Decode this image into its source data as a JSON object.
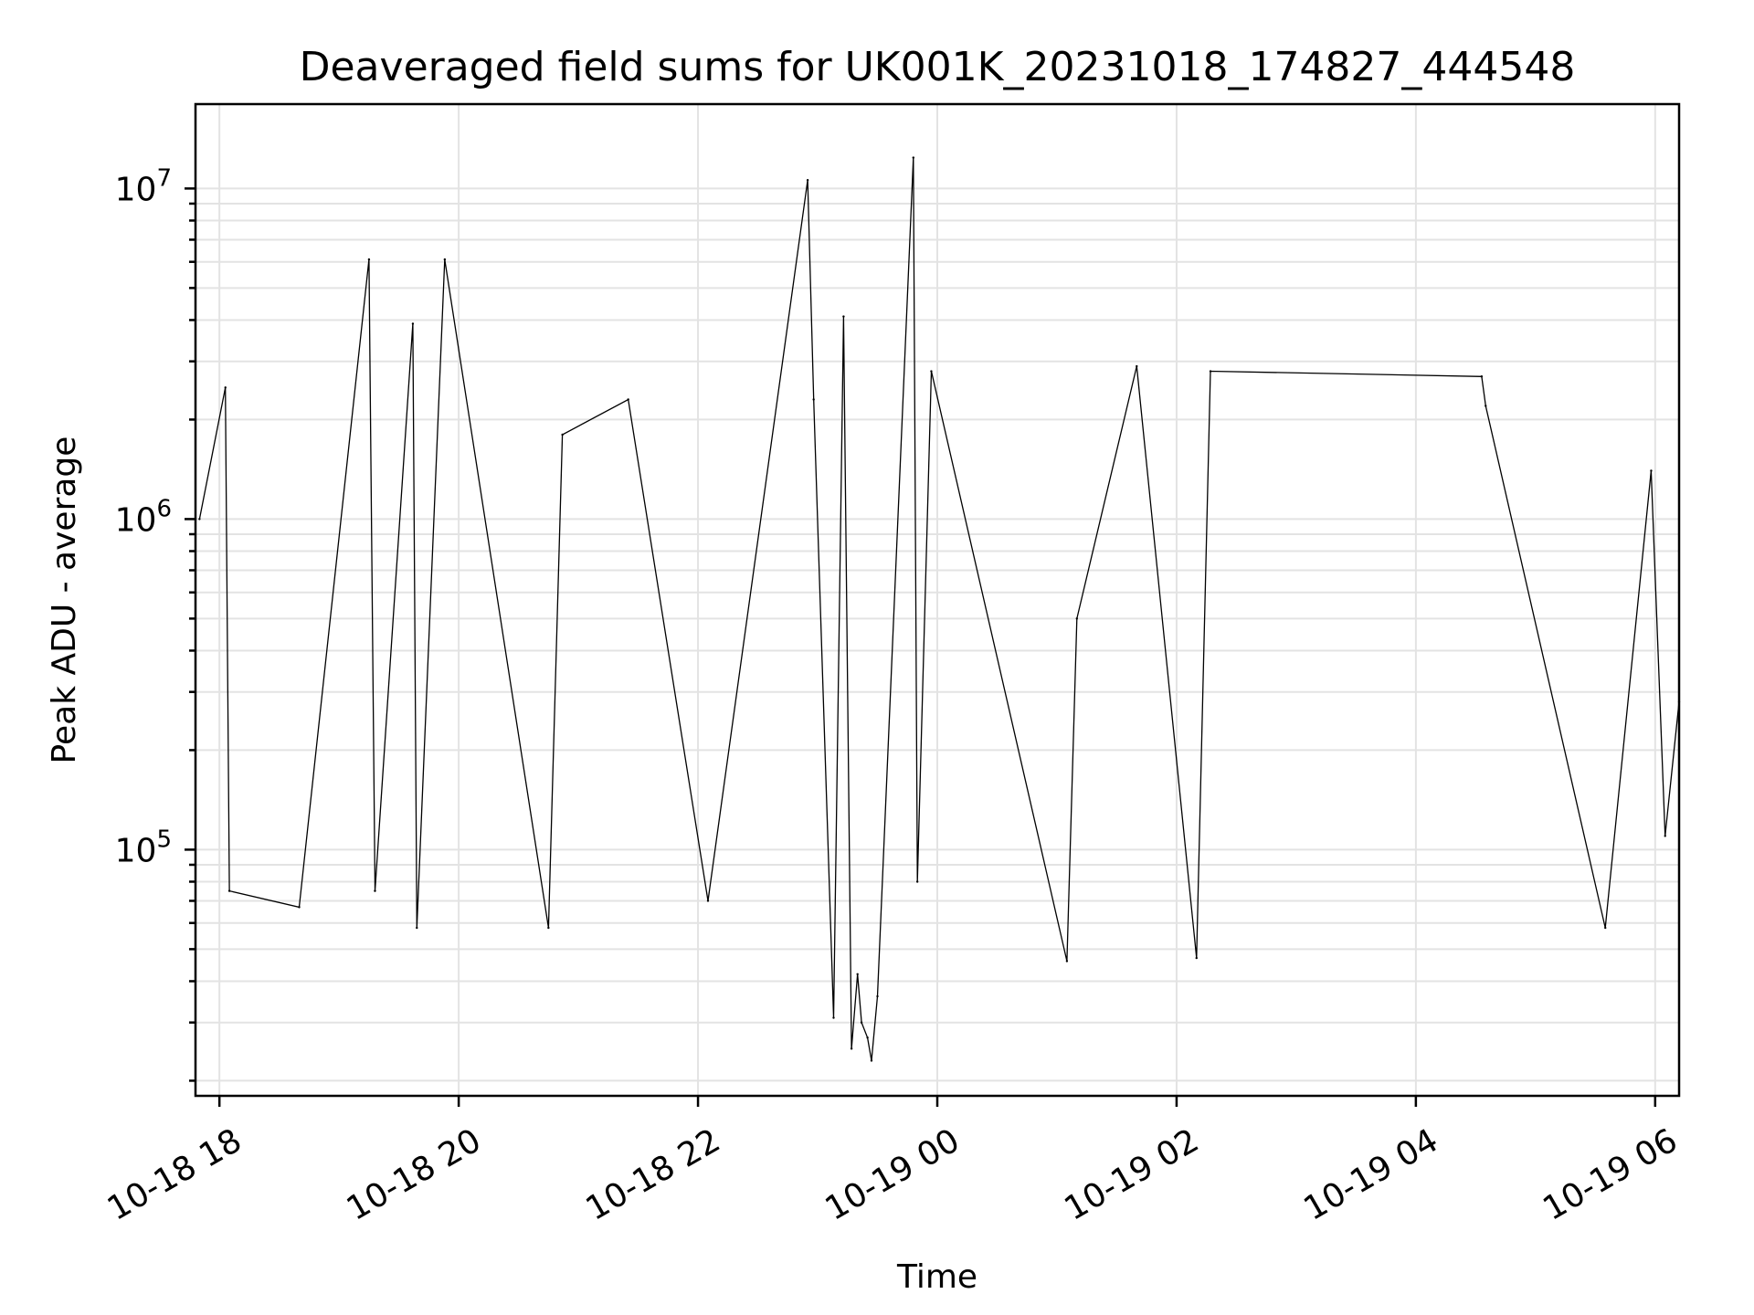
{
  "chart_data": {
    "type": "line",
    "title": "Deaveraged field sums for UK001K_20231018_174827_444548",
    "xlabel": "Time",
    "ylabel": "Peak ADU - average",
    "xlim": [
      "2023-10-18 17:48",
      "2023-10-19 06:12"
    ],
    "ylim": [
      18000,
      18000000
    ],
    "yscale": "log",
    "grid": true,
    "line_color": "#000000",
    "x_ticks": [
      {
        "value": "2023-10-18 18:00",
        "label": "10-18 18"
      },
      {
        "value": "2023-10-18 20:00",
        "label": "10-18 20"
      },
      {
        "value": "2023-10-18 22:00",
        "label": "10-18 22"
      },
      {
        "value": "2023-10-19 00:00",
        "label": "10-19 00"
      },
      {
        "value": "2023-10-19 02:00",
        "label": "10-19 02"
      },
      {
        "value": "2023-10-19 04:00",
        "label": "10-19 04"
      },
      {
        "value": "2023-10-19 06:00",
        "label": "10-19 06"
      }
    ],
    "y_ticks": [
      {
        "value": 100000,
        "base": "10",
        "exp": "5"
      },
      {
        "value": 1000000,
        "base": "10",
        "exp": "6"
      },
      {
        "value": 10000000,
        "base": "10",
        "exp": "7"
      }
    ],
    "series": [
      {
        "x": [
          "2023-10-18 17:50",
          "2023-10-18 18:03",
          "2023-10-18 18:05",
          "2023-10-18 18:40",
          "2023-10-18 19:15",
          "2023-10-18 19:18",
          "2023-10-18 19:37",
          "2023-10-18 19:39",
          "2023-10-18 19:53",
          "2023-10-18 20:45",
          "2023-10-18 20:52",
          "2023-10-18 21:25",
          "2023-10-18 22:05",
          "2023-10-18 22:55",
          "2023-10-18 22:58",
          "2023-10-18 23:08",
          "2023-10-18 23:13",
          "2023-10-18 23:17",
          "2023-10-18 23:20",
          "2023-10-18 23:22",
          "2023-10-18 23:25",
          "2023-10-18 23:27",
          "2023-10-18 23:30",
          "2023-10-18 23:48",
          "2023-10-18 23:50",
          "2023-10-18 23:57",
          "2023-10-19 01:05",
          "2023-10-19 01:10",
          "2023-10-19 01:40",
          "2023-10-19 02:10",
          "2023-10-19 02:17",
          "2023-10-19 04:33",
          "2023-10-19 04:35",
          "2023-10-19 05:35",
          "2023-10-19 05:58",
          "2023-10-19 06:05",
          "2023-10-19 06:12"
        ],
        "y": [
          1000000,
          2500000,
          75000,
          67000,
          6100000,
          75000,
          3900000,
          58000,
          6100000,
          58000,
          1800000,
          2300000,
          70000,
          10600000,
          2300000,
          31000,
          4100000,
          25000,
          42000,
          30000,
          27000,
          23000,
          36000,
          12400000,
          80000,
          2800000,
          46000,
          500000,
          2900000,
          47000,
          2800000,
          2700000,
          2200000,
          58000,
          1400000,
          110000,
          280000
        ]
      }
    ]
  }
}
